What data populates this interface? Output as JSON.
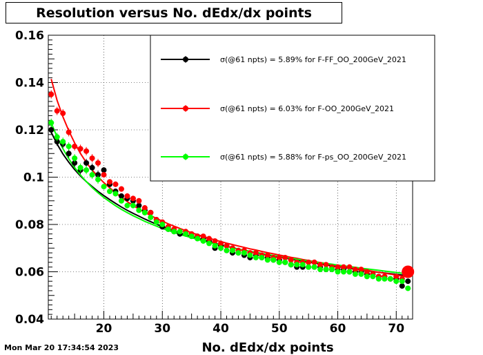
{
  "title": "Resolution versus No. dEdx/dx points",
  "timestamp": "Mon Mar 20 17:34:54 2023",
  "chart_data": {
    "type": "scatter",
    "title": "Resolution versus No. dEdx/dx points",
    "xlabel": "No. dEdx/dx points",
    "ylabel": "",
    "xlim": [
      10.5,
      72.8
    ],
    "ylim": [
      0.04,
      0.16
    ],
    "grid": true,
    "legend_placement": "top-right",
    "x_ticks": [
      20,
      30,
      40,
      50,
      60,
      70
    ],
    "x_tick_labels": [
      "20",
      "30",
      "40",
      "50",
      "60",
      "70"
    ],
    "y_ticks": [
      0.04,
      0.06,
      0.08,
      0.1,
      0.12,
      0.14,
      0.16
    ],
    "y_tick_labels": [
      "0.04",
      "0.06",
      "0.08",
      "0.1",
      "0.12",
      "0.14",
      "0.16"
    ],
    "x": [
      11,
      12,
      13,
      14,
      15,
      16,
      17,
      18,
      19,
      20,
      21,
      22,
      23,
      24,
      25,
      26,
      27,
      28,
      29,
      30,
      31,
      32,
      33,
      34,
      35,
      36,
      37,
      38,
      39,
      40,
      41,
      42,
      43,
      44,
      45,
      46,
      47,
      48,
      49,
      50,
      51,
      52,
      53,
      54,
      55,
      56,
      57,
      58,
      59,
      60,
      61,
      62,
      63,
      64,
      65,
      66,
      67,
      68,
      69,
      70,
      71,
      72
    ],
    "series": [
      {
        "name": "F-FF_OO_200GeV_2021",
        "legend_label": "σ(@61 npts) =  5.89% for F-FF_OO_200GeV_2021",
        "color": "#000000",
        "values": [
          0.12,
          0.115,
          0.114,
          0.11,
          0.106,
          0.103,
          0.106,
          0.104,
          0.101,
          0.103,
          0.097,
          0.094,
          0.092,
          0.091,
          0.09,
          0.088,
          0.086,
          0.085,
          0.082,
          0.079,
          0.078,
          0.077,
          0.076,
          0.076,
          0.075,
          0.075,
          0.074,
          0.073,
          0.07,
          0.071,
          0.069,
          0.068,
          0.068,
          0.067,
          0.066,
          0.067,
          0.066,
          0.066,
          0.065,
          0.065,
          0.064,
          0.063,
          0.062,
          0.062,
          0.062,
          0.062,
          0.062,
          0.061,
          0.061,
          0.061,
          0.061,
          0.06,
          0.06,
          0.06,
          0.059,
          0.059,
          0.058,
          0.058,
          0.057,
          0.057,
          0.054,
          0.056
        ],
        "fit": [
          0.119,
          0.114,
          0.1098,
          0.1063,
          0.1032,
          0.1005,
          0.0981,
          0.096,
          0.094,
          0.0922,
          0.0905,
          0.0889,
          0.0874,
          0.086,
          0.0847,
          0.0835,
          0.0823,
          0.0812,
          0.0801,
          0.0791,
          0.0782,
          0.0773,
          0.0764,
          0.0756,
          0.0748,
          0.0741,
          0.0734,
          0.0727,
          0.072,
          0.0714,
          0.0708,
          0.0702,
          0.0696,
          0.0691,
          0.0686,
          0.0681,
          0.0676,
          0.0671,
          0.0666,
          0.0662,
          0.0658,
          0.0653,
          0.0649,
          0.0645,
          0.0641,
          0.0637,
          0.0633,
          0.0629,
          0.0626,
          0.0622,
          0.0618,
          0.0615,
          0.0611,
          0.0608,
          0.0605,
          0.0601,
          0.0598,
          0.0595,
          0.0592,
          0.0589,
          0.0586,
          0.0583
        ]
      },
      {
        "name": "F-OO_200GeV_2021",
        "legend_label": "σ(@61 npts) =  6.03% for F-OO_200GeV_2021",
        "color": "#ff0000",
        "values": [
          0.135,
          0.128,
          0.127,
          0.119,
          0.113,
          0.112,
          0.111,
          0.108,
          0.106,
          0.101,
          0.098,
          0.097,
          0.095,
          0.092,
          0.091,
          0.09,
          0.087,
          0.085,
          0.082,
          0.081,
          0.079,
          0.078,
          0.077,
          0.077,
          0.076,
          0.075,
          0.075,
          0.074,
          0.073,
          0.072,
          0.071,
          0.07,
          0.069,
          0.069,
          0.068,
          0.068,
          0.067,
          0.067,
          0.066,
          0.066,
          0.066,
          0.065,
          0.064,
          0.064,
          0.064,
          0.064,
          0.063,
          0.063,
          0.062,
          0.062,
          0.062,
          0.062,
          0.061,
          0.061,
          0.06,
          0.059,
          0.058,
          0.058,
          0.057,
          0.058,
          0.057,
          0.06
        ],
        "fit": [
          0.1415,
          0.1325,
          0.1255,
          0.1196,
          0.1145,
          0.11,
          0.1062,
          0.103,
          0.1002,
          0.0977,
          0.0955,
          0.0934,
          0.0915,
          0.0897,
          0.088,
          0.0865,
          0.0851,
          0.0838,
          0.0825,
          0.0814,
          0.0803,
          0.0793,
          0.0783,
          0.0774,
          0.0765,
          0.0757,
          0.0749,
          0.0742,
          0.0735,
          0.0728,
          0.0721,
          0.0715,
          0.0709,
          0.0703,
          0.0697,
          0.0692,
          0.0686,
          0.0681,
          0.0676,
          0.0671,
          0.0666,
          0.0661,
          0.0657,
          0.0652,
          0.0648,
          0.0643,
          0.0639,
          0.0635,
          0.063,
          0.0626,
          0.0622,
          0.0618,
          0.0614,
          0.061,
          0.0606,
          0.0602,
          0.0598,
          0.0594,
          0.059,
          0.0586,
          0.0582,
          0.0578
        ]
      },
      {
        "name": "F-ps_OO_200GeV_2021",
        "legend_label": "σ(@61 npts) =  5.88% for F-ps_OO_200GeV_2021",
        "color": "#00ff00",
        "values": [
          0.123,
          0.117,
          0.115,
          0.113,
          0.108,
          0.104,
          0.103,
          0.101,
          0.099,
          0.096,
          0.094,
          0.093,
          0.09,
          0.088,
          0.088,
          0.086,
          0.085,
          0.083,
          0.081,
          0.08,
          0.078,
          0.077,
          0.077,
          0.076,
          0.075,
          0.074,
          0.073,
          0.072,
          0.071,
          0.07,
          0.069,
          0.069,
          0.068,
          0.068,
          0.067,
          0.066,
          0.066,
          0.065,
          0.065,
          0.064,
          0.064,
          0.063,
          0.063,
          0.063,
          0.062,
          0.062,
          0.061,
          0.061,
          0.061,
          0.06,
          0.06,
          0.06,
          0.059,
          0.059,
          0.058,
          0.058,
          0.057,
          0.057,
          0.057,
          0.056,
          0.056,
          0.053
        ],
        "fit": [
          0.123,
          0.117,
          0.112,
          0.1078,
          0.1041,
          0.1009,
          0.0981,
          0.0956,
          0.0934,
          0.0914,
          0.0896,
          0.0879,
          0.0864,
          0.085,
          0.0837,
          0.0825,
          0.0813,
          0.0803,
          0.0793,
          0.0783,
          0.0775,
          0.0766,
          0.0758,
          0.0751,
          0.0744,
          0.0737,
          0.073,
          0.0724,
          0.0718,
          0.0712,
          0.0707,
          0.0701,
          0.0696,
          0.0691,
          0.0687,
          0.0682,
          0.0678,
          0.0673,
          0.0669,
          0.0665,
          0.0661,
          0.0657,
          0.0653,
          0.0649,
          0.0646,
          0.0642,
          0.0638,
          0.0635,
          0.0632,
          0.0628,
          0.0625,
          0.0622,
          0.0619,
          0.0615,
          0.0612,
          0.0609,
          0.0606,
          0.0603,
          0.06,
          0.0597,
          0.0594,
          0.0591
        ]
      }
    ],
    "highlight_point": {
      "series": "F-OO_200GeV_2021",
      "x": 72,
      "y": 0.06
    }
  }
}
